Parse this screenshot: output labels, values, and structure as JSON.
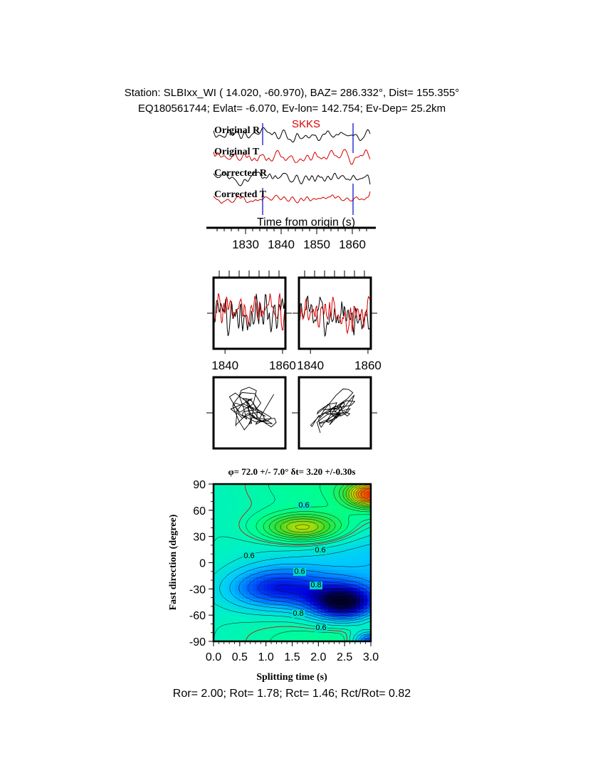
{
  "header": {
    "line1": "Station: SLBIxx_WI ( 14.020, -60.970), BAZ= 286.332°, Dist= 155.355°",
    "line2": "EQ180561744; Evlat= -6.070, Ev-lon= 142.754; Ev-Dep= 25.2km"
  },
  "colors": {
    "radial": "#000000",
    "transverse": "#d40000",
    "marker": "#0000cc",
    "phase": "#dd0000"
  },
  "chart_data": [
    {
      "id": "traces",
      "type": "line",
      "phase_label": "SKKS",
      "trace_labels": [
        "Original R",
        "Original T",
        "Corrected R",
        "Corrected T"
      ],
      "xlabel": "Time from origin (s)",
      "xlim": [
        1821,
        1865
      ],
      "xticks": [
        1830,
        1840,
        1850,
        1860
      ],
      "markers": [
        1834.8,
        1860.2
      ]
    },
    {
      "id": "waveforms-before",
      "type": "line",
      "xlim": [
        1836,
        1861
      ],
      "xticks": [
        1840,
        1860
      ]
    },
    {
      "id": "waveforms-after",
      "type": "line",
      "xlim": [
        1836,
        1861
      ],
      "xticks": [
        1840,
        1860
      ]
    },
    {
      "id": "particle-motion-before",
      "type": "line",
      "grid": false
    },
    {
      "id": "particle-motion-after",
      "type": "line",
      "grid": false
    },
    {
      "id": "energy-grid",
      "type": "heatmap",
      "title": "φ= 72.0 +/- 7.0° δt= 3.20 +/-0.30s",
      "xlabel": "Splitting time (s)",
      "ylabel": "Fast direction (degree)",
      "xlim": [
        0,
        3
      ],
      "ylim": [
        -90,
        90
      ],
      "xticks": [
        "0.0",
        "0.5",
        "1.0",
        "1.5",
        "2.0",
        "2.5",
        "3.0"
      ],
      "yticks": [
        "90",
        "60",
        "30",
        "0",
        "-30",
        "-60",
        "-90"
      ],
      "contour_labels": [
        "0.6",
        "0.6",
        "0.6",
        "0.6",
        "0.8",
        "0.8",
        "0.6"
      ]
    }
  ],
  "footer": {
    "ratios": "Ror= 2.00; Rot= 1.78; Rct= 1.46; Rct/Rot= 0.82"
  }
}
